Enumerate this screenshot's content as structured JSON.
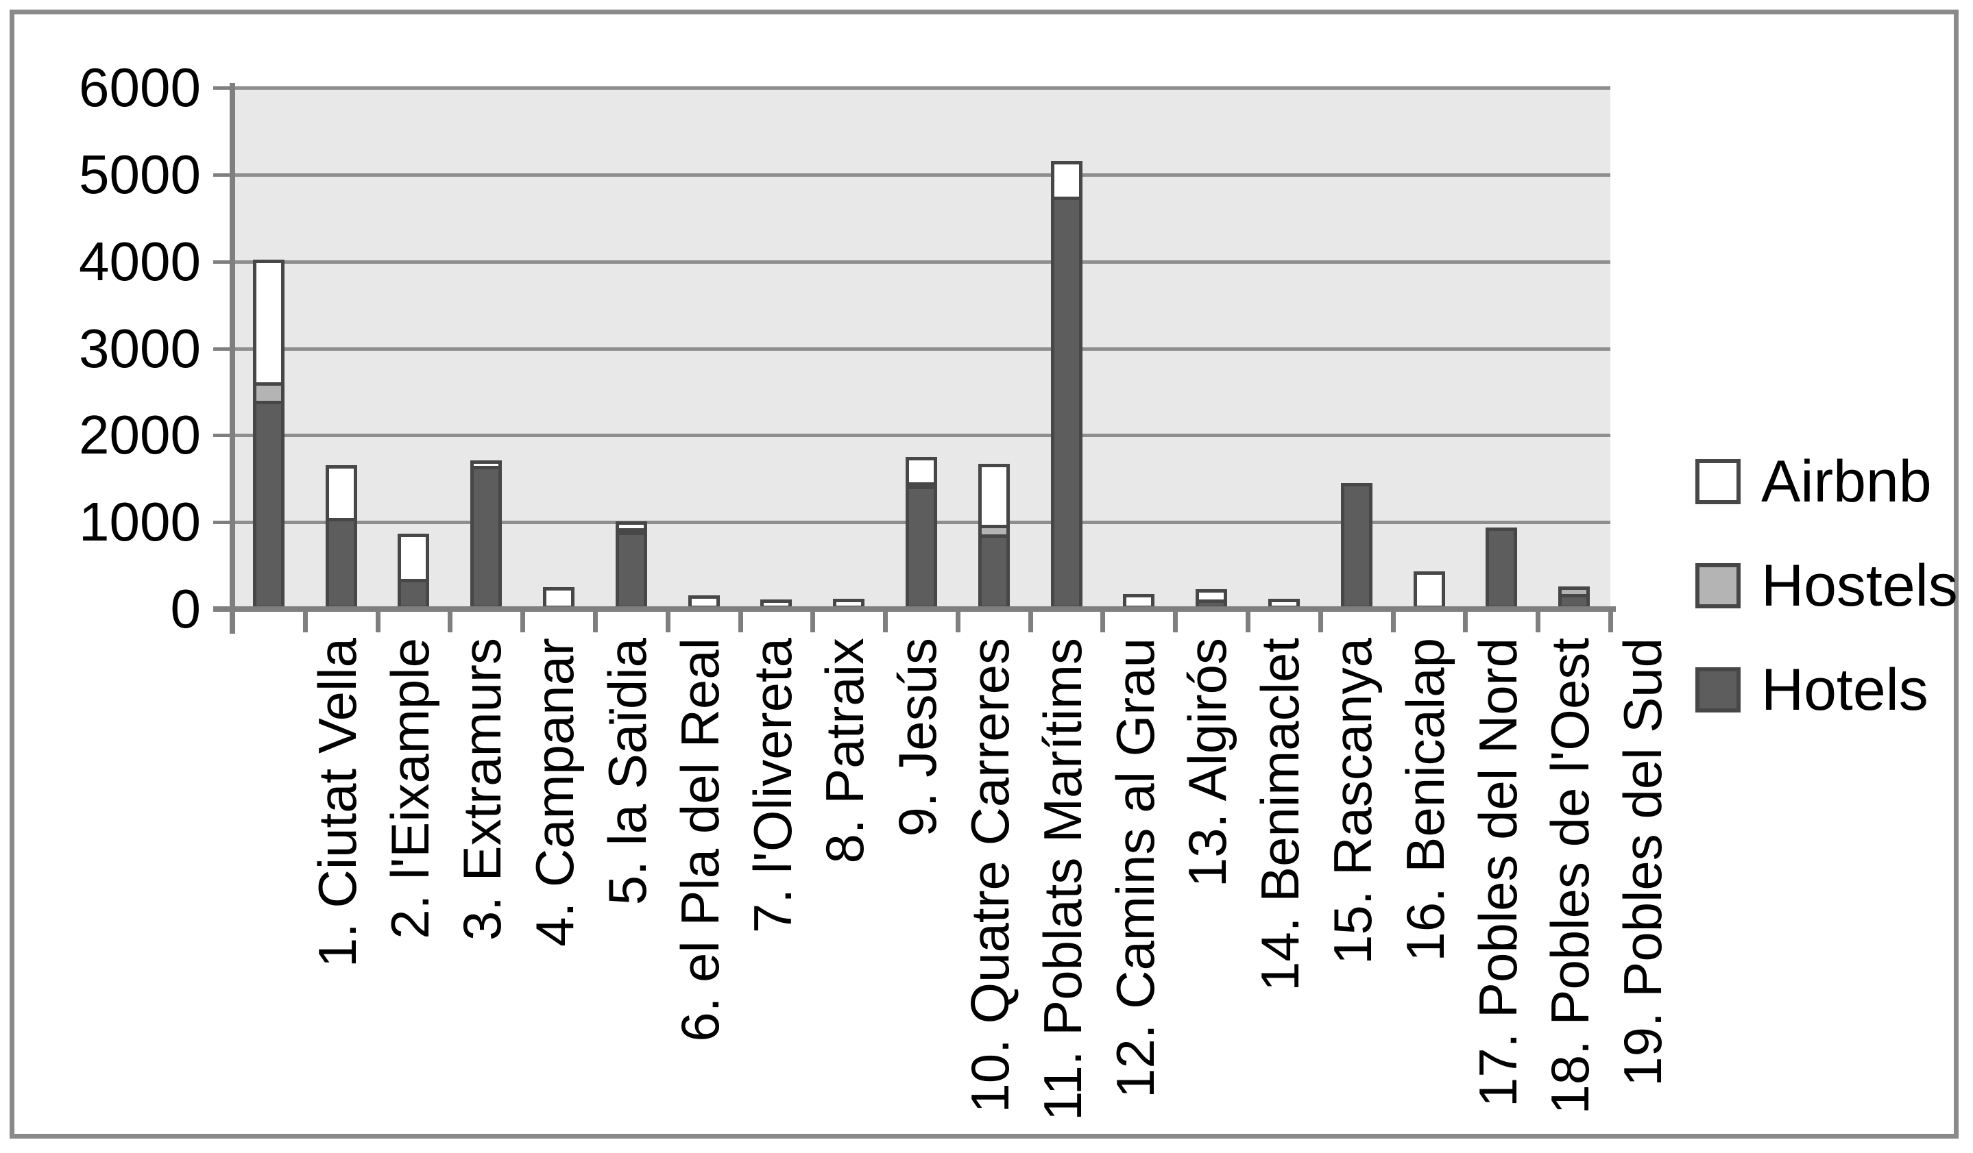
{
  "chart_data": {
    "type": "bar",
    "stacked": true,
    "title": "",
    "xlabel": "",
    "ylabel": "",
    "categories": [
      "1. Ciutat Vella",
      "2. l'Eixample",
      "3. Extramurs",
      "4. Campanar",
      "5. la Saïdia",
      "6. el Pla del Real",
      "7. l'Olivereta",
      "8. Patraix",
      "9. Jesús",
      "10. Quatre Carreres",
      "11. Poblats Marítims",
      "12. Camins al Grau",
      "13. Algirós",
      "14. Benimaclet",
      "15. Rascanya",
      "16. Benicalap",
      "17. Pobles del Nord",
      "18. Pobles de l'Oest",
      "19. Pobles del Sud"
    ],
    "series": [
      {
        "name": "Hotels",
        "color": "#5d5d5d",
        "values": [
          2400,
          1050,
          350,
          1650,
          0,
          890,
          0,
          0,
          0,
          1420,
          860,
          4750,
          0,
          110,
          0,
          1450,
          0,
          940,
          170
        ]
      },
      {
        "name": "Hostels",
        "color": "#b4b4b4",
        "values": [
          250,
          0,
          0,
          0,
          0,
          70,
          0,
          0,
          0,
          50,
          150,
          0,
          0,
          0,
          0,
          0,
          0,
          0,
          130
        ]
      },
      {
        "name": "Airbnb",
        "color": "#ffffff",
        "values": [
          1450,
          650,
          560,
          100,
          250,
          120,
          160,
          110,
          120,
          330,
          740,
          450,
          170,
          160,
          120,
          0,
          430,
          0,
          0
        ]
      }
    ],
    "y_axis": {
      "min": 0,
      "max": 6000,
      "step": 1000,
      "tick_labels": [
        "0",
        "1000",
        "2000",
        "3000",
        "4000",
        "5000",
        "6000"
      ]
    },
    "legend": {
      "position": "right",
      "items": [
        {
          "label": "Airbnb",
          "color": "#ffffff"
        },
        {
          "label": "Hostels",
          "color": "#b4b4b4"
        },
        {
          "label": "Hotels",
          "color": "#5d5d5d"
        }
      ]
    },
    "grid": true,
    "plot_background": "#e8e8e8",
    "gridline_color": "#8e8e8e",
    "bar_border_color": "#474747"
  }
}
